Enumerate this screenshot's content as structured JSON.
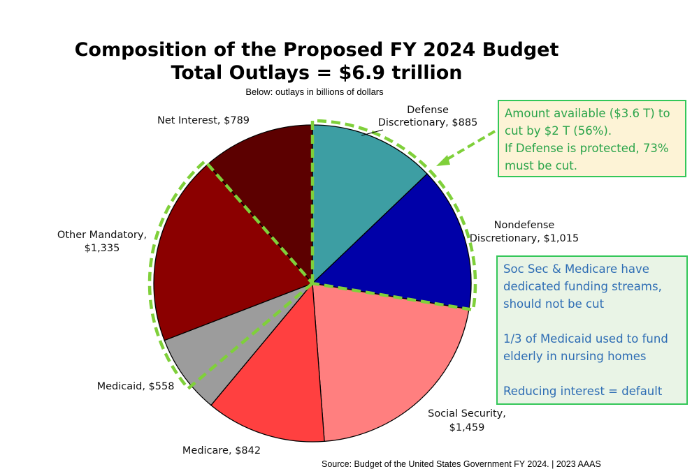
{
  "chart_data": {
    "type": "pie",
    "title": "Composition of the Proposed FY 2024 Budget",
    "subtitle_line": "Total Outlays = $6.9 trillion",
    "note": "Below: outlays in billions of dollars",
    "slices": [
      {
        "label_line1": "Defense",
        "label_line2": "Discretionary, $885",
        "value": 885,
        "color": "#3d9ea3"
      },
      {
        "label_line1": "Nondefense",
        "label_line2": "Discretionary, $1,015",
        "value": 1015,
        "color": "#0000a8"
      },
      {
        "label_line1": "Social Security,",
        "label_line2": "$1,459",
        "value": 1459,
        "color": "#ff7f7f"
      },
      {
        "label_line1": "Medicare, $842",
        "label_line2": "",
        "value": 842,
        "color": "#ff4040"
      },
      {
        "label_line1": "Medicaid, $558",
        "label_line2": "",
        "value": 558,
        "color": "#9c9c9c"
      },
      {
        "label_line1": "Other Mandatory,",
        "label_line2": "$1,335",
        "value": 1335,
        "color": "#8b0000"
      },
      {
        "label_line1": "Net Interest, $789",
        "label_line2": "",
        "value": 789,
        "color": "#5c0000"
      }
    ]
  },
  "callouts": {
    "top_box": {
      "lines": [
        "Amount available ($3.6 T) to",
        "cut by $2 T (56%).",
        "If Defense is protected, 73%",
        "must be cut."
      ],
      "border_color": "#34c759",
      "bg_color": "#fdf3d6",
      "text_color": "#2aa44a"
    },
    "bottom_box": {
      "line1": "Soc Sec & Medicare have",
      "line2": "dedicated funding streams,",
      "line3": "should not be cut",
      "line4": "1/3 of Medicaid used to fund",
      "line5": "elderly in nursing homes",
      "line6": "Reducing interest = default",
      "text_color": "#2e6db4"
    }
  },
  "source": "Source: Budget of the United States Government FY 2024. | 2023 AAAS",
  "highlight_color": "#7fd03a"
}
